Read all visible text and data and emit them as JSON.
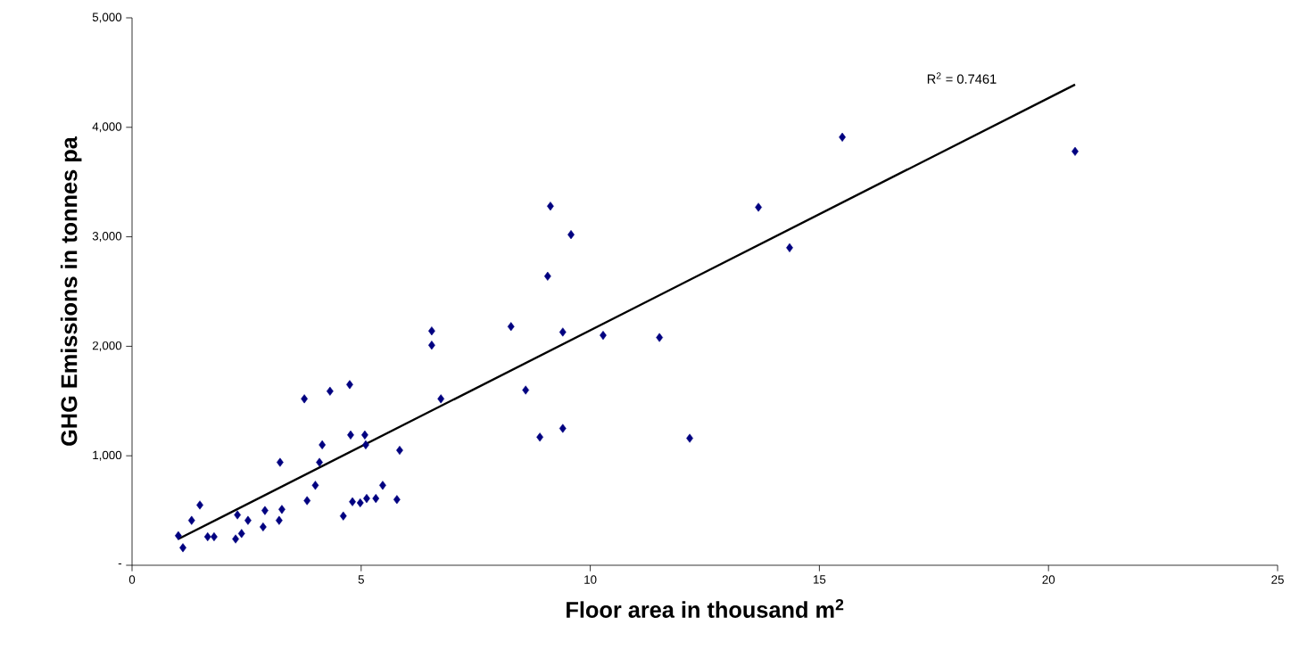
{
  "chart_data": {
    "type": "scatter",
    "xlabel": "**Floor area in thousand m$^{2}$**",
    "ylabel": "**GHG Emissions in tonnes pa**",
    "xlim": [
      0,
      25
    ],
    "xticks": [
      0,
      5,
      10,
      15,
      20,
      25
    ],
    "ylim": [
      0,
      5000
    ],
    "yticks": [
      {
        "value": 0,
        "label": "-"
      },
      {
        "value": 1000,
        "label": "1,000"
      },
      {
        "value": 2000,
        "label": "2,000"
      },
      {
        "value": 3000,
        "label": "3,000"
      },
      {
        "value": 4000,
        "label": "4,000"
      },
      {
        "value": 5000,
        "label": "5,000"
      }
    ],
    "grid": false,
    "annotations": [
      "R$^{2}$ = 0.7461"
    ],
    "series": [
      {
        "marker": "diamond",
        "color": "#000080",
        "x": [
          1.01,
          1.11,
          1.3,
          1.48,
          1.65,
          1.79,
          2.26,
          2.3,
          2.39,
          2.53,
          2.86,
          2.9,
          3.21,
          3.23,
          3.27,
          3.76,
          3.82,
          4.0,
          4.09,
          4.15,
          4.32,
          4.61,
          4.75,
          4.77,
          4.81,
          4.98,
          5.08,
          5.1,
          5.12,
          5.32,
          5.47,
          5.78,
          5.84,
          6.54,
          6.54,
          6.74,
          8.27,
          8.59,
          8.9,
          9.07,
          9.13,
          9.4,
          9.4,
          9.58,
          10.28,
          11.51,
          12.17,
          13.67,
          14.35,
          15.5,
          20.58
        ],
        "values": [
          270,
          160,
          410,
          550,
          260,
          260,
          240,
          460,
          290,
          410,
          350,
          500,
          410,
          940,
          510,
          1520,
          590,
          730,
          940,
          1100,
          1590,
          450,
          1650,
          1190,
          580,
          570,
          1190,
          1100,
          610,
          610,
          730,
          600,
          1050,
          2010,
          2140,
          1520,
          2180,
          1600,
          1170,
          2640,
          3280,
          2130,
          1250,
          3020,
          2100,
          2080,
          1160,
          3270,
          2900,
          3910,
          3780
        ]
      },
      {
        "type": "line",
        "marker": "none",
        "color": "#000000",
        "x": [
          1.01,
          20.58
        ],
        "values": [
          240,
          4390
        ]
      }
    ]
  }
}
